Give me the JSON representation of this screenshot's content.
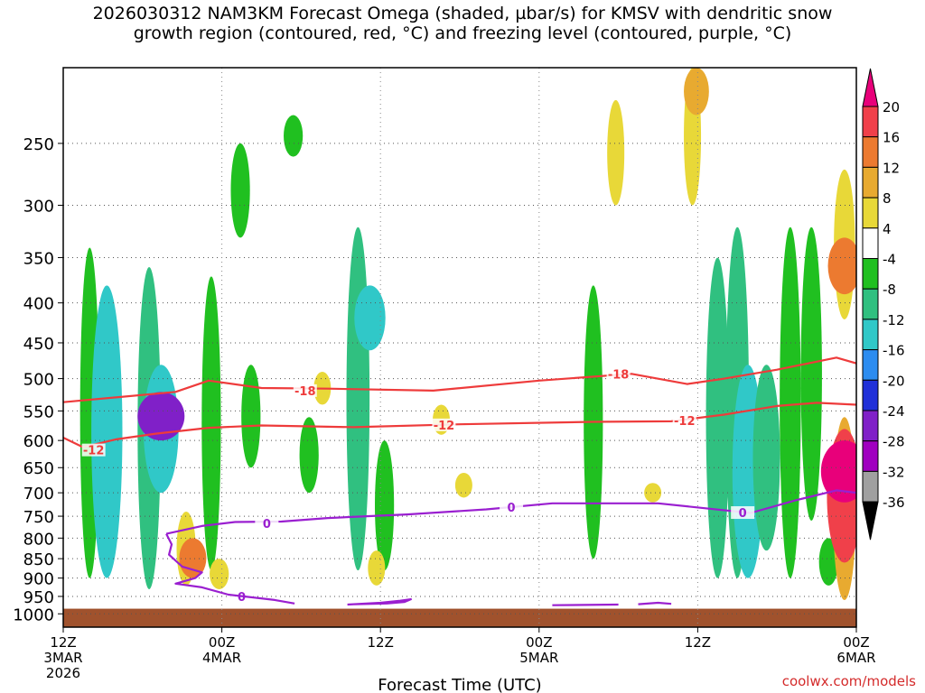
{
  "title_line1": "2026030312 NAM3KM Forecast Omega (shaded, µbar/s) for KMSV with dendritic snow",
  "title_line2": "growth region (contoured, red, °C) and freezing level (contoured, purple, °C)",
  "credit": "coolwx.com/models",
  "chart_data": {
    "type": "heatmap",
    "xlabel": "Forecast Time (UTC)",
    "ylabel": "",
    "x_range_hours": [
      0,
      60
    ],
    "y_range_hpa": [
      1040,
      200
    ],
    "y_scale": "log",
    "y_ticks": [
      250,
      300,
      350,
      400,
      450,
      500,
      550,
      600,
      650,
      700,
      750,
      800,
      850,
      900,
      950,
      1000
    ],
    "x_ticks": [
      {
        "hour": 0,
        "lines": [
          "12Z",
          "3MAR",
          "2026"
        ]
      },
      {
        "hour": 12,
        "lines": [
          "00Z",
          "4MAR"
        ]
      },
      {
        "hour": 24,
        "lines": [
          "12Z"
        ]
      },
      {
        "hour": 36,
        "lines": [
          "00Z",
          "5MAR"
        ]
      },
      {
        "hour": 48,
        "lines": [
          "12Z"
        ]
      },
      {
        "hour": 60,
        "lines": [
          "00Z",
          "6MAR"
        ]
      }
    ],
    "grid": true,
    "colorbar": {
      "labels": [
        "20",
        "16",
        "12",
        "8",
        "4",
        "-4",
        "-8",
        "-12",
        "-16",
        "-20",
        "-24",
        "-28",
        "-32",
        "-36"
      ],
      "colors": [
        "#e8007a",
        "#f0404a",
        "#ec7a30",
        "#e8aa30",
        "#e8d838",
        "#ffffff",
        "#20c020",
        "#30c080",
        "#30c8c8",
        "#2c8cf0",
        "#2030d8",
        "#8020c8",
        "#a000c0",
        "#a0a0a0"
      ],
      "units": "µbar/s"
    },
    "terrain_color": "#a0522d",
    "omega_regions": [
      {
        "hour": 2.0,
        "hpa_top": 340,
        "hpa_bottom": 900,
        "value": -6
      },
      {
        "hour": 3.3,
        "hpa_top": 380,
        "hpa_bottom": 900,
        "value": -12
      },
      {
        "hour": 6.5,
        "hpa_top": 360,
        "hpa_bottom": 930,
        "value": -8
      },
      {
        "hour": 7.4,
        "hpa_top": 480,
        "hpa_bottom": 700,
        "value": -14
      },
      {
        "hour": 7.4,
        "hpa_top": 520,
        "hpa_bottom": 600,
        "value": -26
      },
      {
        "hour": 11.2,
        "hpa_top": 370,
        "hpa_bottom": 880,
        "value": -6
      },
      {
        "hour": 13.4,
        "hpa_top": 250,
        "hpa_bottom": 330,
        "value": -6
      },
      {
        "hour": 14.2,
        "hpa_top": 480,
        "hpa_bottom": 650,
        "value": -6
      },
      {
        "hour": 17.4,
        "hpa_top": 230,
        "hpa_bottom": 260,
        "value": -6
      },
      {
        "hour": 18.6,
        "hpa_top": 560,
        "hpa_bottom": 700,
        "value": -6
      },
      {
        "hour": 22.3,
        "hpa_top": 320,
        "hpa_bottom": 880,
        "value": -8
      },
      {
        "hour": 23.2,
        "hpa_top": 380,
        "hpa_bottom": 460,
        "value": -12
      },
      {
        "hour": 24.3,
        "hpa_top": 600,
        "hpa_bottom": 880,
        "value": -6
      },
      {
        "hour": 40.1,
        "hpa_top": 380,
        "hpa_bottom": 850,
        "value": -6
      },
      {
        "hour": 49.5,
        "hpa_top": 350,
        "hpa_bottom": 900,
        "value": -8
      },
      {
        "hour": 51.0,
        "hpa_top": 320,
        "hpa_bottom": 900,
        "value": -8
      },
      {
        "hour": 51.8,
        "hpa_top": 480,
        "hpa_bottom": 900,
        "value": -12
      },
      {
        "hour": 53.2,
        "hpa_top": 480,
        "hpa_bottom": 830,
        "value": -10
      },
      {
        "hour": 55.0,
        "hpa_top": 320,
        "hpa_bottom": 900,
        "value": -7
      },
      {
        "hour": 56.6,
        "hpa_top": 320,
        "hpa_bottom": 760,
        "value": -7
      },
      {
        "hour": 57.9,
        "hpa_top": 800,
        "hpa_bottom": 920,
        "value": -6
      },
      {
        "hour": 9.3,
        "hpa_top": 740,
        "hpa_bottom": 920,
        "value": 6
      },
      {
        "hour": 9.8,
        "hpa_top": 800,
        "hpa_bottom": 900,
        "value": 10
      },
      {
        "hour": 11.8,
        "hpa_top": 850,
        "hpa_bottom": 930,
        "value": 6
      },
      {
        "hour": 23.7,
        "hpa_top": 830,
        "hpa_bottom": 920,
        "value": 5
      },
      {
        "hour": 28.6,
        "hpa_top": 540,
        "hpa_bottom": 590,
        "value": 5
      },
      {
        "hour": 19.6,
        "hpa_top": 490,
        "hpa_bottom": 540,
        "value": 5
      },
      {
        "hour": 30.3,
        "hpa_top": 660,
        "hpa_bottom": 710,
        "value": 5
      },
      {
        "hour": 41.8,
        "hpa_top": 220,
        "hpa_bottom": 300,
        "value": 5
      },
      {
        "hour": 47.6,
        "hpa_top": 200,
        "hpa_bottom": 300,
        "value": 5
      },
      {
        "hour": 47.9,
        "hpa_top": 200,
        "hpa_bottom": 230,
        "value": 9
      },
      {
        "hour": 44.6,
        "hpa_top": 680,
        "hpa_bottom": 720,
        "value": 5
      },
      {
        "hour": 59.1,
        "hpa_top": 270,
        "hpa_bottom": 420,
        "value": 7
      },
      {
        "hour": 59.1,
        "hpa_top": 330,
        "hpa_bottom": 390,
        "value": 13
      },
      {
        "hour": 59.1,
        "hpa_top": 560,
        "hpa_bottom": 960,
        "value": 8
      },
      {
        "hour": 59.1,
        "hpa_top": 580,
        "hpa_bottom": 860,
        "value": 14
      },
      {
        "hour": 59.1,
        "hpa_top": 600,
        "hpa_bottom": 720,
        "value": 20
      }
    ],
    "contours": [
      {
        "name": "-18",
        "color": "#ee3b3b",
        "label": "-18",
        "label_at": [
          {
            "hour": 18.3,
            "hpa": 518
          },
          {
            "hour": 42.0,
            "hpa": 493
          }
        ],
        "points": [
          [
            0,
            536
          ],
          [
            8.5,
            520
          ],
          [
            11.0,
            503
          ],
          [
            15.0,
            514
          ],
          [
            20.0,
            515
          ],
          [
            28.0,
            518
          ],
          [
            36.0,
            503
          ],
          [
            43.0,
            493
          ],
          [
            47.2,
            508
          ],
          [
            50.0,
            500
          ],
          [
            54.0,
            487
          ],
          [
            58.5,
            470
          ],
          [
            60,
            478
          ]
        ]
      },
      {
        "name": "-12",
        "color": "#ee3b3b",
        "label": "-12",
        "label_at": [
          {
            "hour": 2.3,
            "hpa": 617
          },
          {
            "hour": 28.8,
            "hpa": 573
          },
          {
            "hour": 47.0,
            "hpa": 566
          }
        ],
        "points": [
          [
            0,
            595
          ],
          [
            1.5,
            612
          ],
          [
            4.0,
            598
          ],
          [
            7.0,
            588
          ],
          [
            11.0,
            578
          ],
          [
            15.0,
            574
          ],
          [
            22.0,
            577
          ],
          [
            30.0,
            572
          ],
          [
            40.0,
            568
          ],
          [
            46.0,
            567
          ],
          [
            50.0,
            556
          ],
          [
            54.0,
            542
          ],
          [
            57.0,
            537
          ],
          [
            60,
            540
          ]
        ]
      },
      {
        "name": "0",
        "color": "#9a1fd0",
        "label": "0",
        "label_at": [
          {
            "hour": 15.4,
            "hpa": 766
          },
          {
            "hour": 33.9,
            "hpa": 730
          },
          {
            "hour": 51.4,
            "hpa": 742
          },
          {
            "hour": 13.5,
            "hpa": 950
          }
        ],
        "points": [
          [
            7.8,
            790
          ],
          [
            10.5,
            772
          ],
          [
            13.0,
            763
          ],
          [
            16.5,
            762
          ],
          [
            20.0,
            754
          ],
          [
            26.0,
            746
          ],
          [
            32.0,
            735
          ],
          [
            37.0,
            722
          ],
          [
            45.0,
            722
          ],
          [
            52.0,
            743
          ],
          [
            55.5,
            715
          ],
          [
            58.5,
            695
          ],
          [
            60,
            700
          ]
        ]
      },
      {
        "name": "0-lower",
        "color": "#9a1fd0",
        "label": "",
        "points": [
          [
            7.8,
            790
          ],
          [
            8.2,
            815
          ],
          [
            8.0,
            840
          ],
          [
            9.0,
            870
          ],
          [
            10.5,
            885
          ],
          [
            10.0,
            900
          ],
          [
            8.5,
            915
          ],
          [
            10.5,
            925
          ],
          [
            12.5,
            945
          ],
          [
            16.0,
            960
          ],
          [
            17.5,
            970
          ]
        ]
      },
      {
        "name": "0-surface",
        "color": "#9a1fd0",
        "label": "",
        "points": [
          [
            21.5,
            973
          ],
          [
            24.0,
            968
          ],
          [
            25.5,
            962
          ],
          [
            26.3,
            958
          ],
          [
            25.8,
            966
          ],
          [
            24.5,
            970
          ],
          [
            22.0,
            972
          ]
        ]
      },
      {
        "name": "0-surface2",
        "color": "#9a1fd0",
        "label": "",
        "points": [
          [
            37.0,
            975
          ],
          [
            42.0,
            973
          ]
        ]
      },
      {
        "name": "0-surface3",
        "color": "#9a1fd0",
        "label": "",
        "points": [
          [
            43.5,
            972
          ],
          [
            45.0,
            968
          ],
          [
            46.0,
            971
          ]
        ]
      }
    ]
  }
}
